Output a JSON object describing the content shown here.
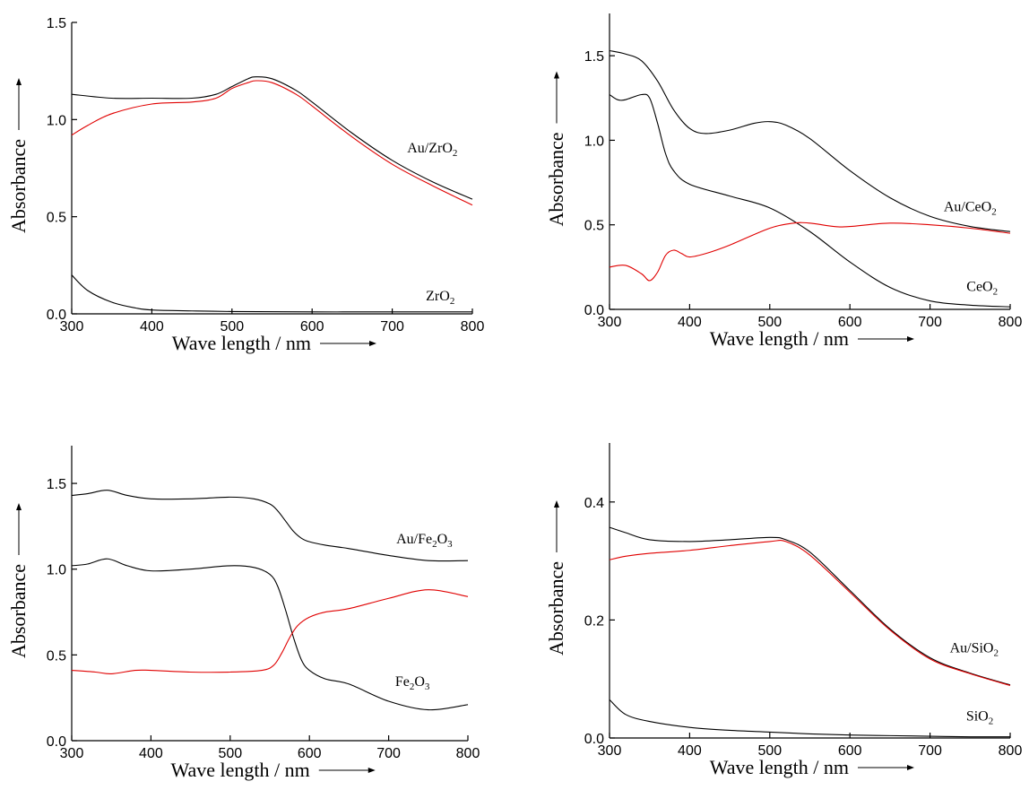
{
  "chart_data": [
    {
      "type": "line",
      "xlabel": "Wave length / nm",
      "ylabel": "Absorbance",
      "xlim": [
        300,
        800
      ],
      "ylim": [
        0,
        1.5
      ],
      "xticks": [
        300,
        400,
        500,
        600,
        700,
        800
      ],
      "yticks": [
        0.0,
        0.5,
        1.0,
        1.5
      ],
      "ytick_labels": [
        "0.0",
        "0.5",
        "1.0",
        "1.5"
      ],
      "grid": false,
      "series_labels": [
        {
          "parts": [
            {
              "t": "Au/ZrO"
            },
            {
              "t": "2",
              "sub": true
            }
          ],
          "x": 750,
          "y": 0.83
        },
        {
          "parts": [
            {
              "t": "ZrO"
            },
            {
              "t": "2",
              "sub": true
            }
          ],
          "x": 760,
          "y": 0.07
        }
      ],
      "series": [
        {
          "color": "#000000",
          "x": [
            300,
            350,
            400,
            450,
            480,
            500,
            520,
            530,
            550,
            580,
            600,
            650,
            700,
            750,
            800
          ],
          "y": [
            1.13,
            1.11,
            1.11,
            1.11,
            1.13,
            1.17,
            1.21,
            1.22,
            1.21,
            1.15,
            1.09,
            0.93,
            0.79,
            0.68,
            0.59
          ]
        },
        {
          "color": "#e00000",
          "x": [
            300,
            320,
            350,
            400,
            450,
            480,
            500,
            520,
            530,
            550,
            580,
            600,
            650,
            700,
            750,
            800
          ],
          "y": [
            0.92,
            0.97,
            1.03,
            1.08,
            1.09,
            1.11,
            1.16,
            1.19,
            1.2,
            1.19,
            1.13,
            1.07,
            0.91,
            0.77,
            0.66,
            0.56
          ]
        },
        {
          "color": "#000000",
          "x": [
            300,
            320,
            350,
            380,
            400,
            450,
            500,
            600,
            700,
            800
          ],
          "y": [
            0.2,
            0.12,
            0.06,
            0.03,
            0.02,
            0.015,
            0.012,
            0.01,
            0.01,
            0.01
          ]
        }
      ]
    },
    {
      "type": "line",
      "xlabel": "Wave length / nm",
      "ylabel": "Absorbance",
      "xlim": [
        300,
        800
      ],
      "ylim": [
        0,
        1.75
      ],
      "xticks": [
        300,
        400,
        500,
        600,
        700,
        800
      ],
      "yticks": [
        0.0,
        0.5,
        1.0,
        1.5
      ],
      "ytick_labels": [
        "0.0",
        "0.5",
        "1.0",
        "1.5"
      ],
      "grid": false,
      "series_labels": [
        {
          "parts": [
            {
              "t": "Au/CeO"
            },
            {
              "t": "2",
              "sub": true
            }
          ],
          "x": 750,
          "y": 0.58
        },
        {
          "parts": [
            {
              "t": "CeO"
            },
            {
              "t": "2",
              "sub": true
            }
          ],
          "x": 765,
          "y": 0.11
        }
      ],
      "series": [
        {
          "color": "#000000",
          "x": [
            300,
            320,
            340,
            360,
            380,
            400,
            420,
            450,
            480,
            500,
            520,
            550,
            600,
            650,
            700,
            750,
            800
          ],
          "y": [
            1.53,
            1.51,
            1.47,
            1.35,
            1.18,
            1.07,
            1.04,
            1.06,
            1.1,
            1.11,
            1.09,
            1.01,
            0.82,
            0.66,
            0.55,
            0.49,
            0.46
          ]
        },
        {
          "color": "#000000",
          "x": [
            300,
            310,
            320,
            340,
            350,
            360,
            370,
            380,
            400,
            450,
            500,
            550,
            600,
            650,
            700,
            750,
            800
          ],
          "y": [
            1.27,
            1.24,
            1.24,
            1.27,
            1.25,
            1.1,
            0.92,
            0.82,
            0.74,
            0.67,
            0.6,
            0.46,
            0.28,
            0.13,
            0.05,
            0.025,
            0.015
          ]
        },
        {
          "color": "#e00000",
          "x": [
            300,
            320,
            340,
            350,
            360,
            370,
            380,
            390,
            400,
            420,
            450,
            500,
            530,
            550,
            580,
            600,
            650,
            700,
            750,
            800
          ],
          "y": [
            0.25,
            0.26,
            0.21,
            0.17,
            0.22,
            0.32,
            0.35,
            0.33,
            0.31,
            0.33,
            0.38,
            0.48,
            0.51,
            0.51,
            0.49,
            0.49,
            0.51,
            0.5,
            0.48,
            0.45
          ]
        }
      ]
    },
    {
      "type": "line",
      "xlabel": "Wave length / nm",
      "ylabel": "Absorbance",
      "xlim": [
        300,
        800
      ],
      "ylim": [
        0,
        1.72
      ],
      "xticks": [
        300,
        400,
        500,
        600,
        700,
        800
      ],
      "yticks": [
        0.0,
        0.5,
        1.0,
        1.5
      ],
      "ytick_labels": [
        "0.0",
        "0.5",
        "1.0",
        "1.5"
      ],
      "grid": false,
      "series_labels": [
        {
          "parts": [
            {
              "t": "Au/Fe"
            },
            {
              "t": "2",
              "sub": true
            },
            {
              "t": "O"
            },
            {
              "t": "3",
              "sub": true
            }
          ],
          "x": 745,
          "y": 1.15
        },
        {
          "parts": [
            {
              "t": "Fe"
            },
            {
              "t": "2",
              "sub": true
            },
            {
              "t": "O"
            },
            {
              "t": "3",
              "sub": true
            }
          ],
          "x": 730,
          "y": 0.32
        }
      ],
      "series": [
        {
          "color": "#000000",
          "x": [
            300,
            320,
            345,
            370,
            400,
            450,
            500,
            530,
            550,
            560,
            570,
            580,
            590,
            600,
            620,
            650,
            700,
            750,
            800
          ],
          "y": [
            1.43,
            1.44,
            1.46,
            1.43,
            1.41,
            1.41,
            1.42,
            1.41,
            1.38,
            1.34,
            1.28,
            1.22,
            1.18,
            1.16,
            1.14,
            1.12,
            1.08,
            1.05,
            1.05
          ]
        },
        {
          "color": "#000000",
          "x": [
            300,
            320,
            345,
            370,
            400,
            450,
            500,
            530,
            550,
            560,
            570,
            580,
            590,
            600,
            620,
            650,
            700,
            750,
            800
          ],
          "y": [
            1.02,
            1.03,
            1.06,
            1.02,
            0.99,
            1.0,
            1.02,
            1.01,
            0.97,
            0.9,
            0.76,
            0.6,
            0.47,
            0.41,
            0.36,
            0.33,
            0.23,
            0.18,
            0.21
          ]
        },
        {
          "color": "#e00000",
          "x": [
            300,
            330,
            350,
            380,
            400,
            450,
            500,
            540,
            555,
            565,
            575,
            585,
            600,
            620,
            650,
            700,
            750,
            800
          ],
          "y": [
            0.41,
            0.4,
            0.39,
            0.41,
            0.41,
            0.4,
            0.4,
            0.41,
            0.44,
            0.51,
            0.6,
            0.67,
            0.72,
            0.75,
            0.77,
            0.83,
            0.88,
            0.84
          ]
        }
      ]
    },
    {
      "type": "line",
      "xlabel": "Wave length / nm",
      "ylabel": "Absorbance",
      "xlim": [
        300,
        800
      ],
      "ylim": [
        0,
        0.5
      ],
      "xticks": [
        300,
        400,
        500,
        600,
        700,
        800
      ],
      "yticks": [
        0.0,
        0.2,
        0.4
      ],
      "ytick_labels": [
        "0.0",
        "0.2",
        "0.4"
      ],
      "grid": false,
      "series_labels": [
        {
          "parts": [
            {
              "t": "Au/SiO"
            },
            {
              "t": "2",
              "sub": true
            }
          ],
          "x": 755,
          "y": 0.145
        },
        {
          "parts": [
            {
              "t": "SiO"
            },
            {
              "t": "2",
              "sub": true
            }
          ],
          "x": 762,
          "y": 0.03
        }
      ],
      "series": [
        {
          "color": "#000000",
          "x": [
            300,
            320,
            350,
            400,
            450,
            500,
            520,
            550,
            600,
            650,
            700,
            750,
            800
          ],
          "y": [
            0.357,
            0.348,
            0.336,
            0.333,
            0.336,
            0.34,
            0.336,
            0.315,
            0.25,
            0.185,
            0.136,
            0.11,
            0.09
          ]
        },
        {
          "color": "#e00000",
          "x": [
            300,
            320,
            350,
            400,
            450,
            500,
            520,
            550,
            600,
            650,
            700,
            750,
            800
          ],
          "y": [
            0.302,
            0.308,
            0.313,
            0.318,
            0.326,
            0.333,
            0.333,
            0.31,
            0.247,
            0.183,
            0.134,
            0.109,
            0.089
          ]
        },
        {
          "color": "#000000",
          "x": [
            300,
            320,
            350,
            400,
            450,
            500,
            550,
            600,
            650,
            700,
            750,
            800
          ],
          "y": [
            0.065,
            0.04,
            0.028,
            0.018,
            0.013,
            0.01,
            0.007,
            0.005,
            0.004,
            0.003,
            0.002,
            0.002
          ]
        }
      ]
    }
  ]
}
